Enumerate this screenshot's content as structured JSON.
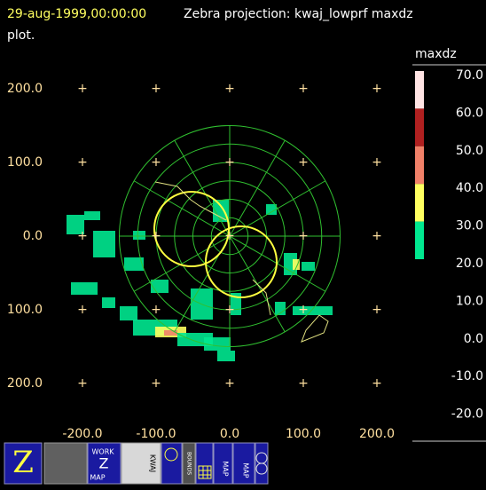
{
  "header": {
    "time": "29-aug-1999,00:00:00",
    "title": "Zebra projection: kwaj_lowprf maxdz",
    "title_cont": "plot."
  },
  "y_labels": [
    "200.0",
    "100.0",
    "0.0",
    "100.0",
    "200.0"
  ],
  "x_labels": [
    "-200.0",
    "-100.0",
    "0.0",
    "100.0",
    "200.0"
  ],
  "colorbar": {
    "field": "maxdz",
    "labels": [
      "70.0",
      "60.0",
      "50.0",
      "40.0",
      "30.0",
      "20.0",
      "10.0",
      "0.0",
      "-10.0",
      "-20.0"
    ],
    "colors": [
      "#ffe4e4",
      "#b02020",
      "#f08068",
      "#ffff60",
      "#00e890"
    ]
  },
  "toolbar": {
    "work": "WORK",
    "z": "Z",
    "map": "MAP",
    "kwaj": "KWAJ",
    "bounds": "BOUNDS",
    "map2": "MAP",
    "map3": "MAP"
  }
}
